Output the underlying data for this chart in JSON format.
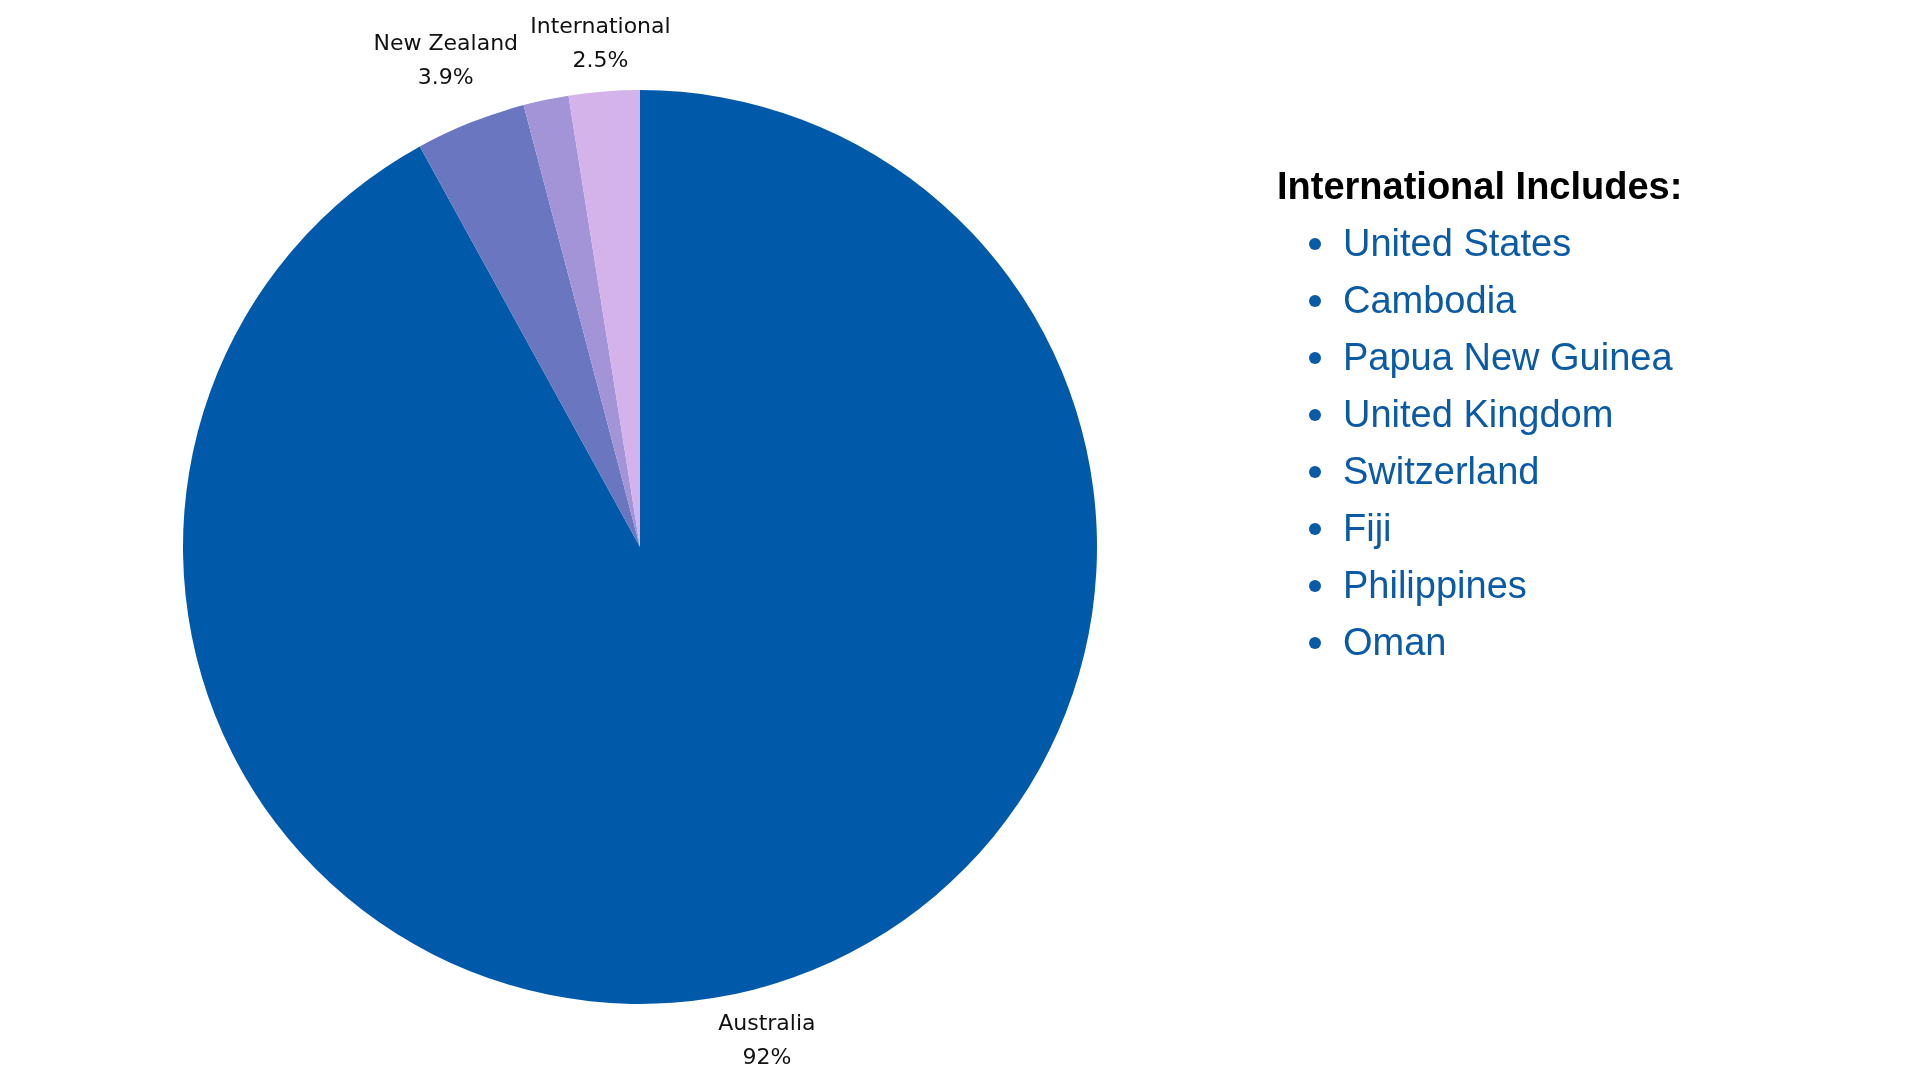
{
  "chart_data": {
    "type": "pie",
    "categories": [
      "Australia",
      "New Zealand",
      null,
      "International"
    ],
    "values": [
      92,
      3.9,
      1.6,
      2.5
    ],
    "colors": [
      "#005aa9",
      "#6a76c0",
      "#a294d6",
      "#d4b3ea"
    ],
    "value_labels": [
      "92%",
      "3.9%",
      null,
      "2.5%"
    ],
    "annotations": [
      "International Includes:",
      "United States",
      "Cambodia",
      "Papua New Guinea",
      "United Kingdom",
      "Switzerland",
      "Fiji",
      "Philippines",
      "Oman"
    ]
  }
}
